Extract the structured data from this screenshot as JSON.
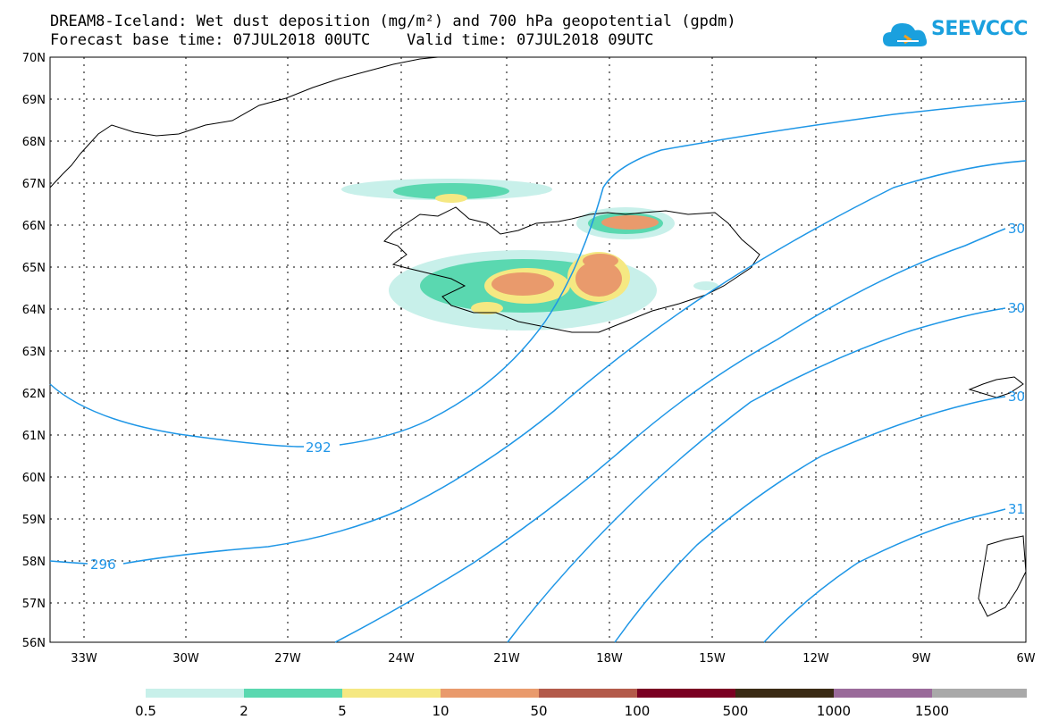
{
  "header": {
    "title_line1": "DREAM8-Iceland: Wet dust deposition (mg/m²) and 700 hPa geopotential (gpdm)",
    "title_line2": "Forecast base time: 07JUL2018 00UTC    Valid time: 07JUL2018 09UTC"
  },
  "logo": {
    "text": "SEEVCCC",
    "icon": "cloud-logo-icon",
    "color": "#1aa0de"
  },
  "map": {
    "lat_labels": [
      "70N",
      "69N",
      "68N",
      "67N",
      "66N",
      "65N",
      "64N",
      "63N",
      "62N",
      "61N",
      "60N",
      "59N",
      "58N",
      "57N",
      "56N"
    ],
    "lon_labels": [
      "33W",
      "30W",
      "27W",
      "24W",
      "21W",
      "18W",
      "15W",
      "12W",
      "9W",
      "6W"
    ],
    "contour_color": "#1e96e6",
    "contour_labels": [
      "292",
      "296",
      "30",
      "30",
      "30",
      "31"
    ]
  },
  "legend": {
    "colors": [
      "#c8f0ea",
      "#5ad8b0",
      "#f5e882",
      "#e99a6c",
      "#b35a4a",
      "#7a0022",
      "#3a2a14",
      "#9a6a9a",
      "#a9a9a9"
    ],
    "labels": [
      "0.5",
      "2",
      "5",
      "10",
      "50",
      "100",
      "500",
      "1000",
      "1500"
    ]
  }
}
